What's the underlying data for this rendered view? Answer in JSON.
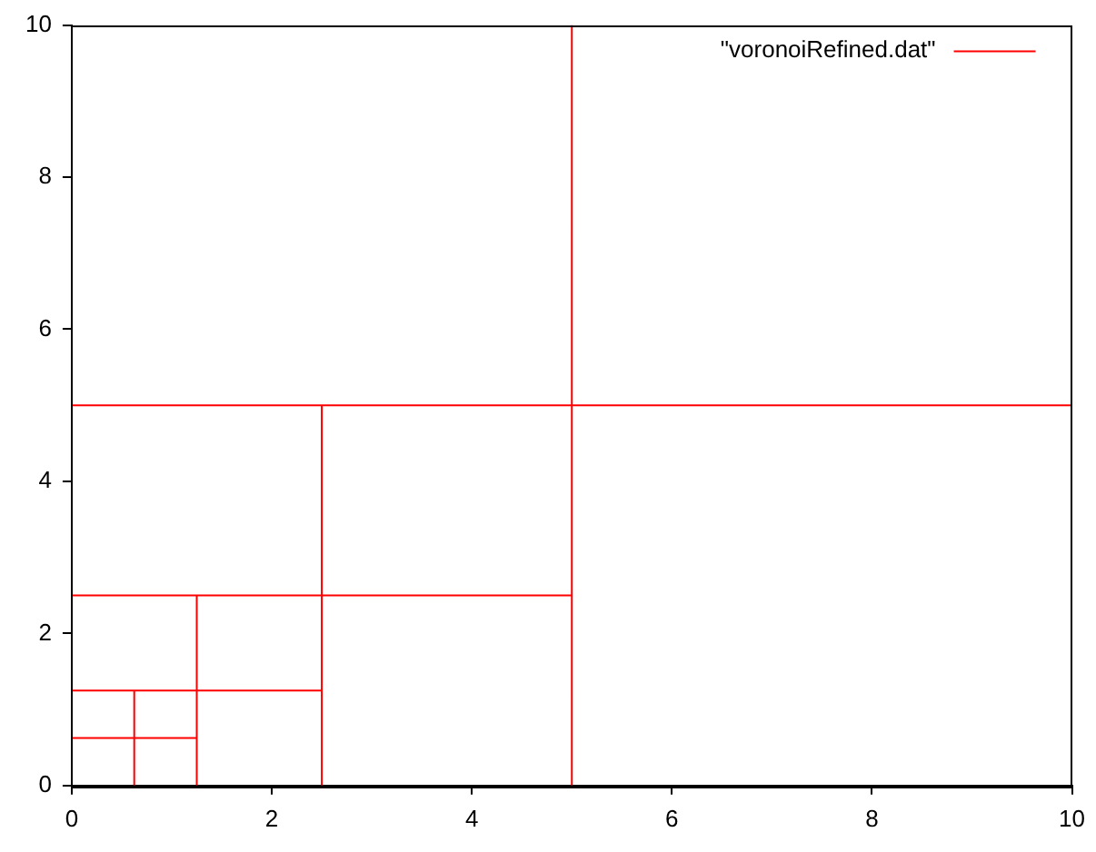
{
  "chart_data": {
    "type": "line",
    "xlim": [
      0,
      10
    ],
    "ylim": [
      0,
      10
    ],
    "xticks": [
      0,
      2,
      4,
      6,
      8,
      10
    ],
    "yticks": [
      0,
      2,
      4,
      6,
      8,
      10
    ],
    "grid": false,
    "legend": "top right",
    "marker": "none",
    "line_style": "solid",
    "series": [
      {
        "name": "\"voronoiRefined.dat\"",
        "color": "#ff0000",
        "x": [
          5,
          5,
          null,
          0,
          10,
          null,
          2.5,
          2.5,
          null,
          0,
          5,
          null,
          1.25,
          1.25,
          null,
          0,
          2.5,
          null,
          0.625,
          0.625,
          null,
          0,
          1.25
        ],
        "values": [
          0,
          10,
          null,
          5,
          5,
          null,
          0,
          5,
          null,
          2.5,
          2.5,
          null,
          0,
          2.5,
          null,
          1.25,
          1.25,
          null,
          0,
          1.25,
          null,
          0.625,
          0.625
        ]
      }
    ]
  }
}
